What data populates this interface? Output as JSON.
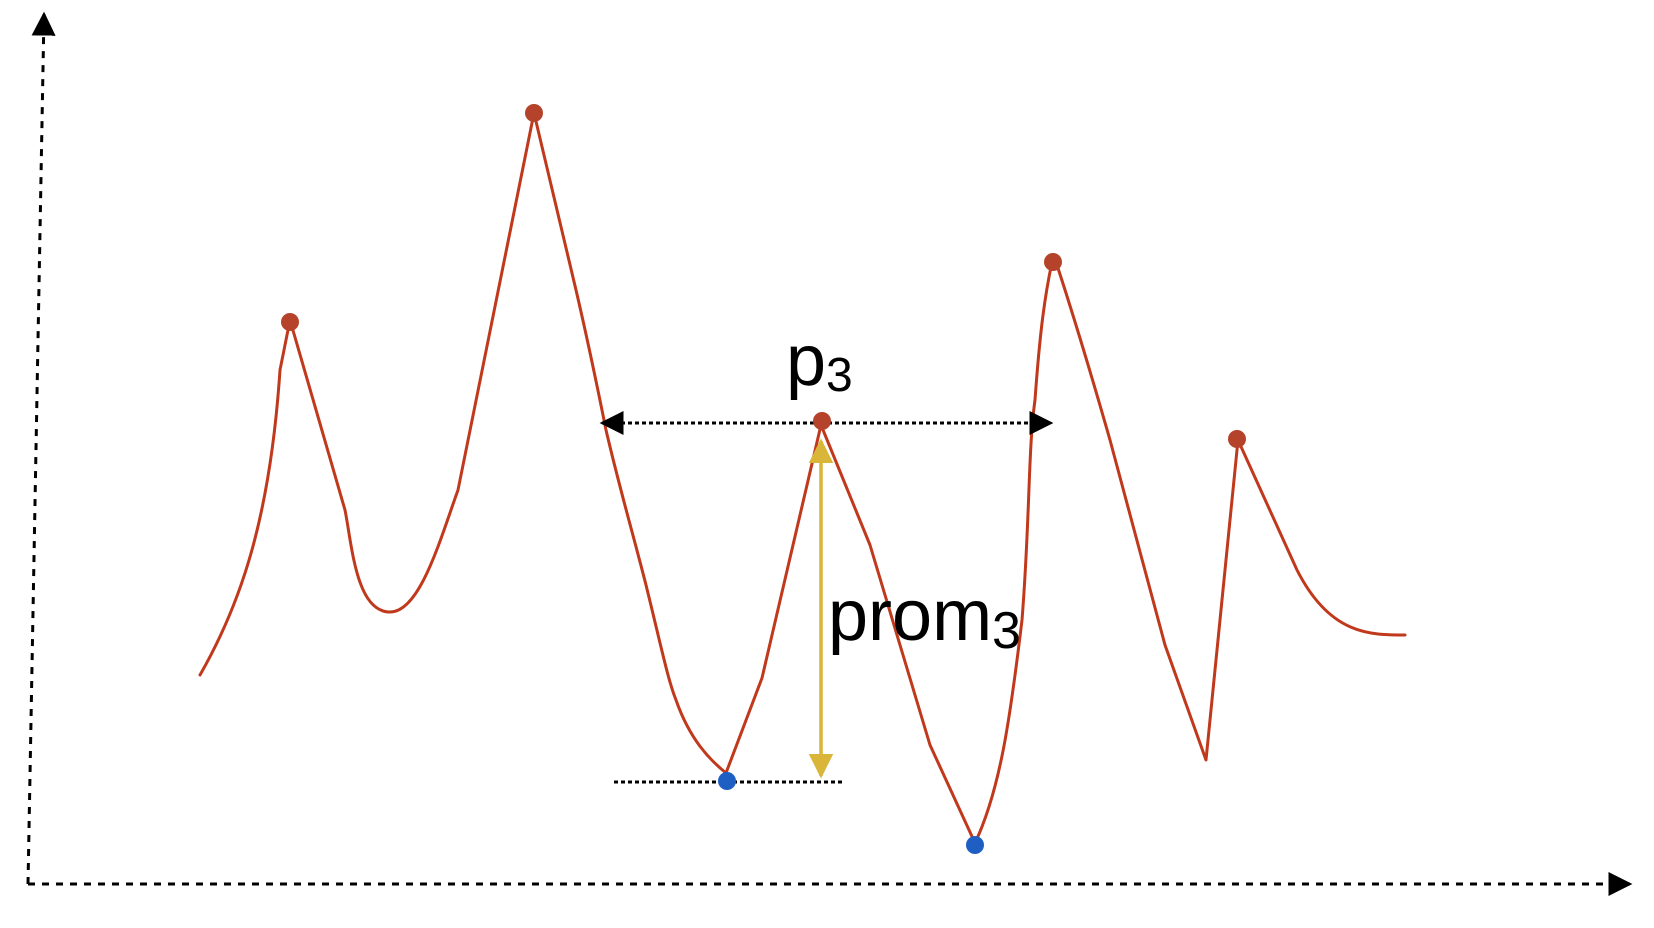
{
  "labels": {
    "peak_name": "p",
    "peak_sub": "3",
    "prominence_name": "prom",
    "prominence_sub": "3"
  },
  "colors": {
    "curve": "#c0391c",
    "peak_marker": "#b5432b",
    "valley_marker": "#1f5fc4",
    "prominence_arrow": "#d9b63a",
    "axes": "#000000",
    "dotted_guides": "#000000"
  },
  "icons": {
    "axis_arrow": "triangle-arrowhead",
    "peak_marker": "filled-circle",
    "valley_marker": "filled-circle"
  }
}
